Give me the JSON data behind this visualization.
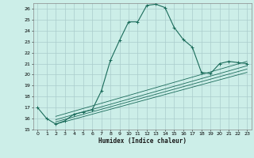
{
  "xlabel": "Humidex (Indice chaleur)",
  "bg_color": "#cceee8",
  "grid_color": "#aacccc",
  "line_color": "#1a6b5a",
  "xlim": [
    -0.5,
    23.5
  ],
  "ylim": [
    15,
    26.5
  ],
  "xticks": [
    0,
    1,
    2,
    3,
    4,
    5,
    6,
    7,
    8,
    9,
    10,
    11,
    12,
    13,
    14,
    15,
    16,
    17,
    18,
    19,
    20,
    21,
    22,
    23
  ],
  "yticks": [
    15,
    16,
    17,
    18,
    19,
    20,
    21,
    22,
    23,
    24,
    25,
    26
  ],
  "main_curve_x": [
    0,
    1,
    2,
    3,
    4,
    5,
    6,
    7,
    8,
    9,
    10,
    11,
    12,
    13,
    14,
    15,
    16,
    17,
    18,
    19,
    20,
    21,
    22,
    23
  ],
  "main_curve_y": [
    17.0,
    16.0,
    15.5,
    15.8,
    16.4,
    16.6,
    16.8,
    18.5,
    21.3,
    23.1,
    24.8,
    24.8,
    26.3,
    26.4,
    26.1,
    24.3,
    23.2,
    22.5,
    20.2,
    20.1,
    21.0,
    21.2,
    21.1,
    21.0
  ],
  "linear_curves": [
    {
      "x": [
        2,
        23
      ],
      "y": [
        15.5,
        20.2
      ]
    },
    {
      "x": [
        2,
        23
      ],
      "y": [
        15.7,
        20.5
      ]
    },
    {
      "x": [
        2,
        23
      ],
      "y": [
        15.9,
        20.8
      ]
    },
    {
      "x": [
        2,
        23
      ],
      "y": [
        16.2,
        21.2
      ]
    }
  ]
}
